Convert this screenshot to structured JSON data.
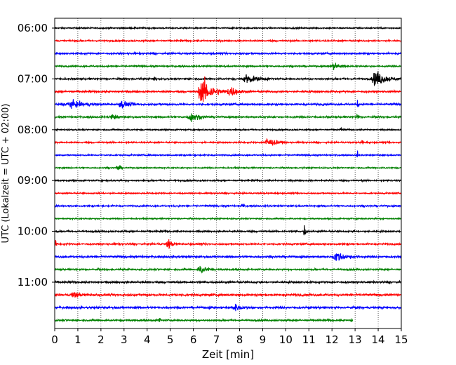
{
  "chart_data": {
    "type": "line",
    "title": "",
    "xlabel": "Zeit  [min]",
    "ylabel": "UTC (Lokalzeit = UTC + 02:00)",
    "xlim": [
      0,
      15
    ],
    "x_ticks": [
      "0",
      "1",
      "2",
      "3",
      "4",
      "5",
      "6",
      "7",
      "8",
      "9",
      "10",
      "11",
      "12",
      "13",
      "14",
      "15"
    ],
    "y_ticks": [
      {
        "label": "06:00",
        "row": 0
      },
      {
        "label": "07:00",
        "row": 4
      },
      {
        "label": "08:00",
        "row": 8
      },
      {
        "label": "09:00",
        "row": 12
      },
      {
        "label": "10:00",
        "row": 16
      },
      {
        "label": "11:00",
        "row": 20
      }
    ],
    "grid": {
      "x": true,
      "style": "dotted"
    },
    "colors": [
      "#000000",
      "#ff0000",
      "#0000ff",
      "#008000"
    ],
    "row_interval_min": 15,
    "rows": [
      {
        "start": "06:00",
        "color": "#000000",
        "noise": 0.35,
        "events": []
      },
      {
        "start": "06:15",
        "color": "#ff0000",
        "noise": 0.4,
        "events": []
      },
      {
        "start": "06:30",
        "color": "#0000ff",
        "noise": 0.45,
        "events": []
      },
      {
        "start": "06:45",
        "color": "#008000",
        "noise": 0.4,
        "events": [
          {
            "t": 12.1,
            "amp": 2.0,
            "dur": 0.5
          }
        ]
      },
      {
        "start": "07:00",
        "color": "#000000",
        "noise": 0.45,
        "events": [
          {
            "t": 4.3,
            "amp": 3.2,
            "dur": 0.08
          },
          {
            "t": 8.3,
            "amp": 2.5,
            "dur": 0.7
          },
          {
            "t": 13.9,
            "amp": 4.5,
            "dur": 0.7
          }
        ]
      },
      {
        "start": "07:15",
        "color": "#ff0000",
        "noise": 0.5,
        "events": [
          {
            "t": 6.4,
            "amp": 7.0,
            "dur": 0.8
          },
          {
            "t": 7.6,
            "amp": 3.0,
            "dur": 0.5
          }
        ]
      },
      {
        "start": "07:30",
        "color": "#0000ff",
        "noise": 0.5,
        "events": [
          {
            "t": 0.7,
            "amp": 1.8,
            "dur": 1.0
          },
          {
            "t": 2.9,
            "amp": 1.8,
            "dur": 0.6
          },
          {
            "t": 13.1,
            "amp": 2.0,
            "dur": 0.1
          }
        ]
      },
      {
        "start": "07:45",
        "color": "#008000",
        "noise": 0.45,
        "events": [
          {
            "t": 2.5,
            "amp": 1.5,
            "dur": 0.4
          },
          {
            "t": 5.9,
            "amp": 2.5,
            "dur": 0.6
          },
          {
            "t": 13.1,
            "amp": 4.0,
            "dur": 0.08
          }
        ]
      },
      {
        "start": "08:00",
        "color": "#000000",
        "noise": 0.35,
        "events": [
          {
            "t": 12.4,
            "amp": 3.0,
            "dur": 0.06
          }
        ]
      },
      {
        "start": "08:15",
        "color": "#ff0000",
        "noise": 0.4,
        "events": [
          {
            "t": 9.2,
            "amp": 2.5,
            "dur": 0.6
          },
          {
            "t": 13.3,
            "amp": 3.0,
            "dur": 0.06
          }
        ]
      },
      {
        "start": "08:30",
        "color": "#0000ff",
        "noise": 0.35,
        "events": [
          {
            "t": 13.1,
            "amp": 2.0,
            "dur": 0.06
          }
        ]
      },
      {
        "start": "08:45",
        "color": "#008000",
        "noise": 0.35,
        "events": [
          {
            "t": 2.7,
            "amp": 2.2,
            "dur": 0.2
          }
        ]
      },
      {
        "start": "09:00",
        "color": "#000000",
        "noise": 0.4,
        "events": []
      },
      {
        "start": "09:15",
        "color": "#ff0000",
        "noise": 0.35,
        "events": []
      },
      {
        "start": "09:30",
        "color": "#0000ff",
        "noise": 0.4,
        "events": [
          {
            "t": 8.1,
            "amp": 2.8,
            "dur": 0.08
          }
        ]
      },
      {
        "start": "09:45",
        "color": "#008000",
        "noise": 0.35,
        "events": []
      },
      {
        "start": "10:00",
        "color": "#000000",
        "noise": 0.45,
        "events": [
          {
            "t": 10.8,
            "amp": 4.2,
            "dur": 0.1
          }
        ]
      },
      {
        "start": "10:15",
        "color": "#ff0000",
        "noise": 0.45,
        "events": [
          {
            "t": 0.05,
            "amp": 3.5,
            "dur": 0.04
          },
          {
            "t": 4.9,
            "amp": 2.8,
            "dur": 0.3
          }
        ]
      },
      {
        "start": "10:30",
        "color": "#0000ff",
        "noise": 0.5,
        "events": [
          {
            "t": 12.2,
            "amp": 2.6,
            "dur": 0.7
          }
        ]
      },
      {
        "start": "10:45",
        "color": "#008000",
        "noise": 0.45,
        "events": [
          {
            "t": 6.3,
            "amp": 2.2,
            "dur": 0.5
          }
        ]
      },
      {
        "start": "11:00",
        "color": "#000000",
        "noise": 0.5,
        "events": []
      },
      {
        "start": "11:15",
        "color": "#ff0000",
        "noise": 0.55,
        "events": [
          {
            "t": 0.8,
            "amp": 1.8,
            "dur": 0.4
          },
          {
            "t": 5.2,
            "amp": 3.0,
            "dur": 0.06
          }
        ]
      },
      {
        "start": "11:30",
        "color": "#0000ff",
        "noise": 0.55,
        "events": [
          {
            "t": 7.8,
            "amp": 1.5,
            "dur": 0.5
          }
        ]
      },
      {
        "start": "11:45",
        "color": "#008000",
        "noise": 0.45,
        "events": [
          {
            "t": 4.5,
            "amp": 3.2,
            "dur": 0.08
          },
          {
            "t": 12.85,
            "amp": 3.0,
            "dur": 0.03
          }
        ],
        "end_min": 12.9
      }
    ]
  }
}
